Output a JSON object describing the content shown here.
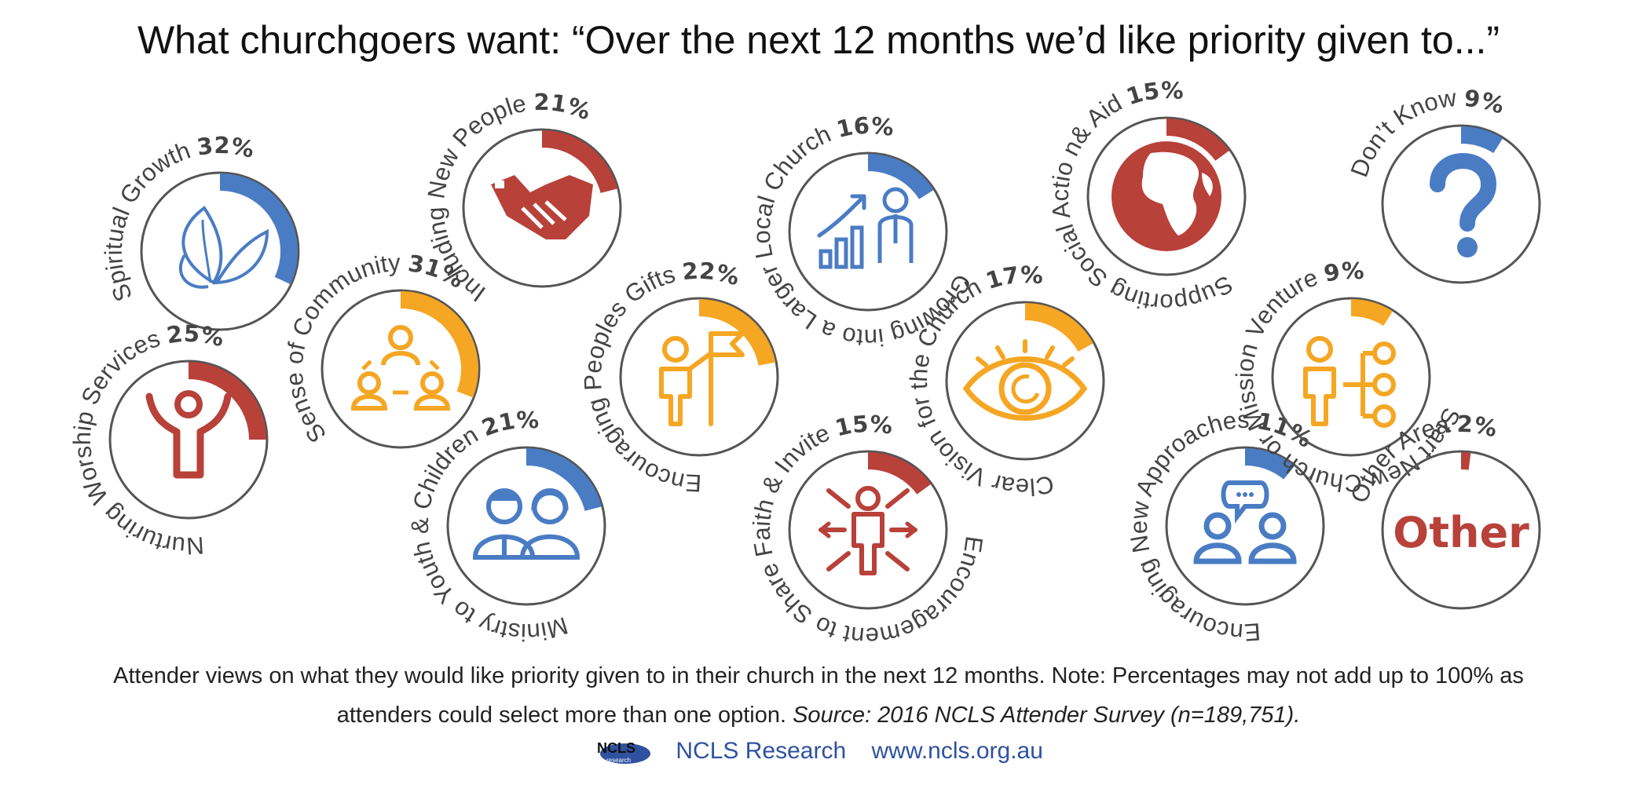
{
  "title": "What churchgoers want: “Over the next 12 months we’d like priority given to...”",
  "caption": {
    "text": "Attender views on what they would like priority given to in their church in the next 12 months. Note: Percentages may not add up to 100%  as attenders could select more than one option.",
    "source": "Source: 2016 NCLS Attender Survey (n=189,751)."
  },
  "footer": {
    "logo_text": "NCLS",
    "logo_sub": "research",
    "org": "NCLS Research",
    "url": "www.ncls.org.au"
  },
  "colors": {
    "blue": "#4a7cc4",
    "red": "#b8413a",
    "orange": "#f5a623",
    "ring": "#555555"
  },
  "chart_data": {
    "type": "radial-bar",
    "unit": "%",
    "items": [
      {
        "label": "Spiritual Growth",
        "value": 32,
        "value_text": "32%",
        "color": "blue",
        "icon": "leaf-icon"
      },
      {
        "label": "Nurturing Worship Services",
        "value": 25,
        "value_text": "25%",
        "color": "red",
        "icon": "worship-person-icon"
      },
      {
        "label": "Sense of Community",
        "value": 31,
        "value_text": "31%",
        "color": "orange",
        "icon": "community-icon"
      },
      {
        "label": "Including New People",
        "value": 21,
        "value_text": "21%",
        "color": "red",
        "icon": "handshake-icon"
      },
      {
        "label": "Ministry to Youth & Children",
        "value": 21,
        "value_text": "21%",
        "color": "blue",
        "icon": "youth-icon"
      },
      {
        "label": "Encouraging Peoples Gifts",
        "value": 22,
        "value_text": "22%",
        "color": "orange",
        "icon": "flag-person-icon"
      },
      {
        "label": "Growing into a Larger Local Church",
        "value": 16,
        "value_text": "16%",
        "color": "blue",
        "icon": "growth-icon"
      },
      {
        "label": "Encouragement to Share Faith & Invite",
        "value": 15,
        "value_text": "15%",
        "color": "red",
        "icon": "share-arrows-icon"
      },
      {
        "label": "Clear Vision for the Church",
        "value": 17,
        "value_text": "17%",
        "color": "orange",
        "icon": "eye-icon"
      },
      {
        "label": "Supporting Social Actio n& Aid",
        "value": 15,
        "value_text": "15%",
        "color": "red",
        "icon": "globe-icon"
      },
      {
        "label": "Encouraging New Approaches",
        "value": 11,
        "value_text": "11%",
        "color": "blue",
        "icon": "chat-people-icon"
      },
      {
        "label": "Don’t Know",
        "value": 9,
        "value_text": "9%",
        "color": "blue",
        "icon": "question-mark-icon"
      },
      {
        "label": "Start New Church or Mission Venture",
        "value": 9,
        "value_text": "9%",
        "color": "orange",
        "icon": "org-chart-icon"
      },
      {
        "label": "Other Area",
        "value": 2,
        "value_text": "2%",
        "color": "red",
        "icon": "other-icon",
        "icon_text": "Other"
      }
    ]
  }
}
